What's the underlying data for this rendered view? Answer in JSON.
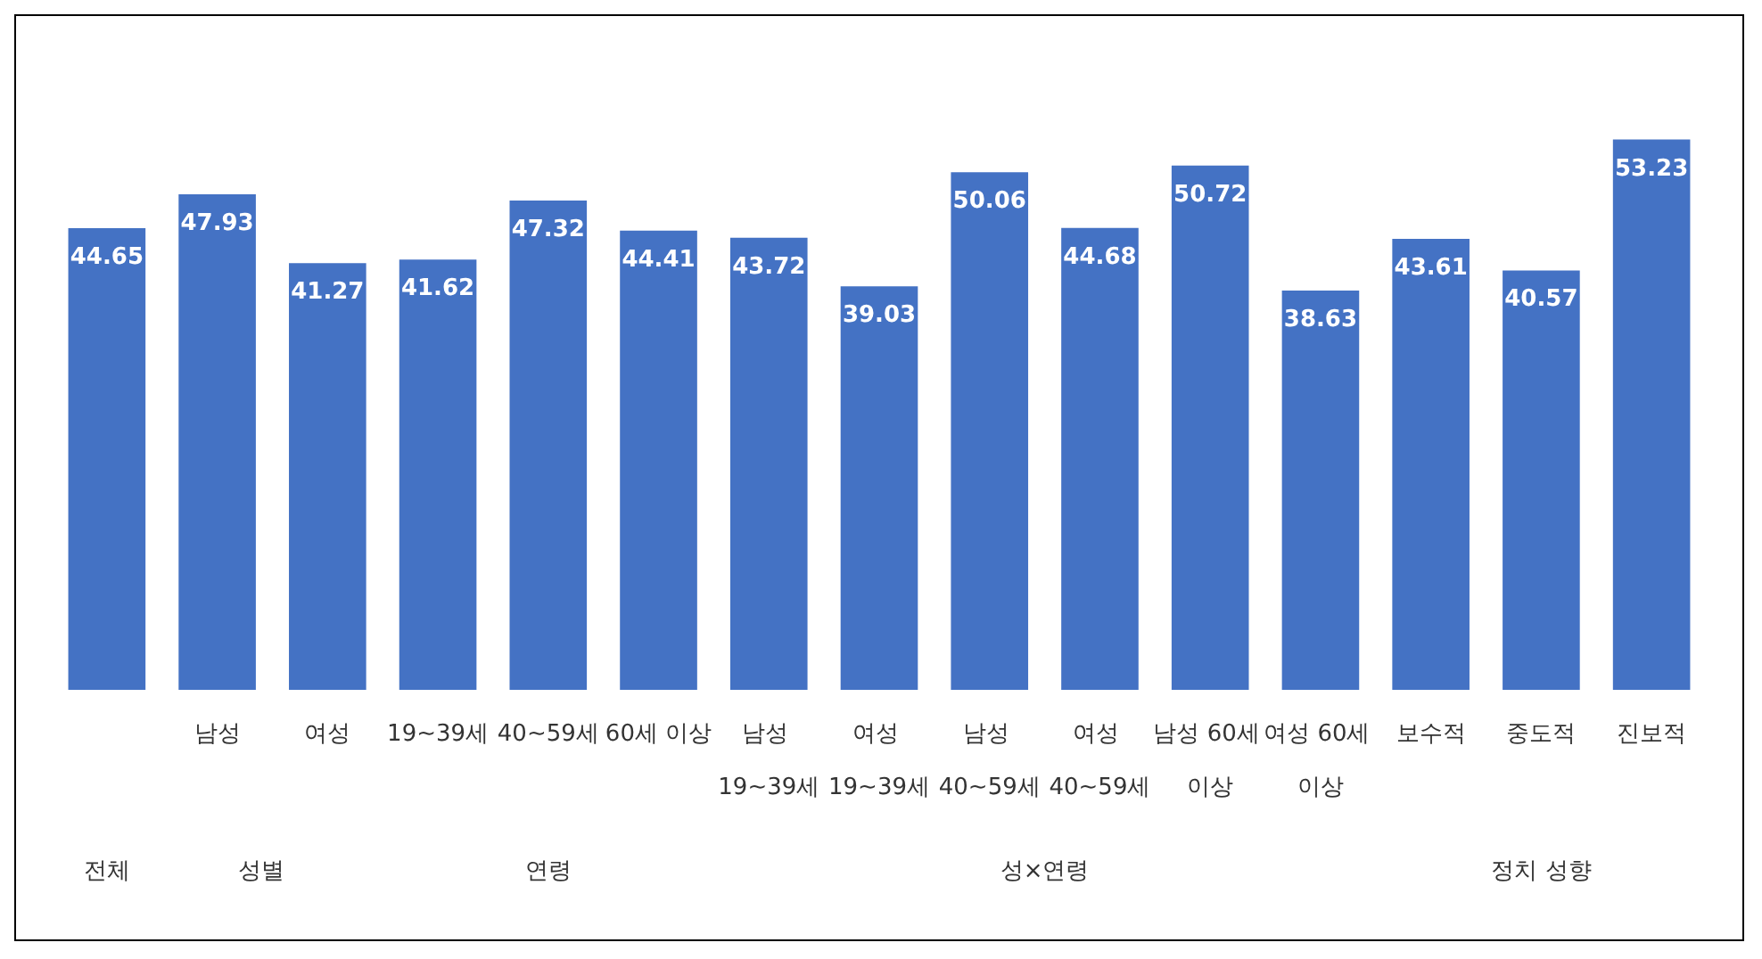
{
  "chart_data": {
    "type": "bar",
    "categories": [
      null,
      "남성",
      "여성",
      "19~39세",
      "40~59세",
      "60세 이상",
      "남성 19~39세",
      "여성 19~39세",
      "남성 40~59세",
      "여성 40~59세",
      "남성 60세 이상",
      "여성 60세 이상",
      "보수적",
      "중도적",
      "진보적"
    ],
    "values": [
      44.65,
      47.93,
      41.27,
      41.62,
      47.32,
      44.41,
      43.72,
      39.03,
      50.06,
      44.68,
      50.72,
      38.63,
      43.61,
      40.57,
      53.23
    ],
    "color": "#4472c4",
    "data_labels": true,
    "annotations": [
      "전체",
      "성별",
      "연령",
      "성×연령",
      "정치 성향"
    ]
  }
}
